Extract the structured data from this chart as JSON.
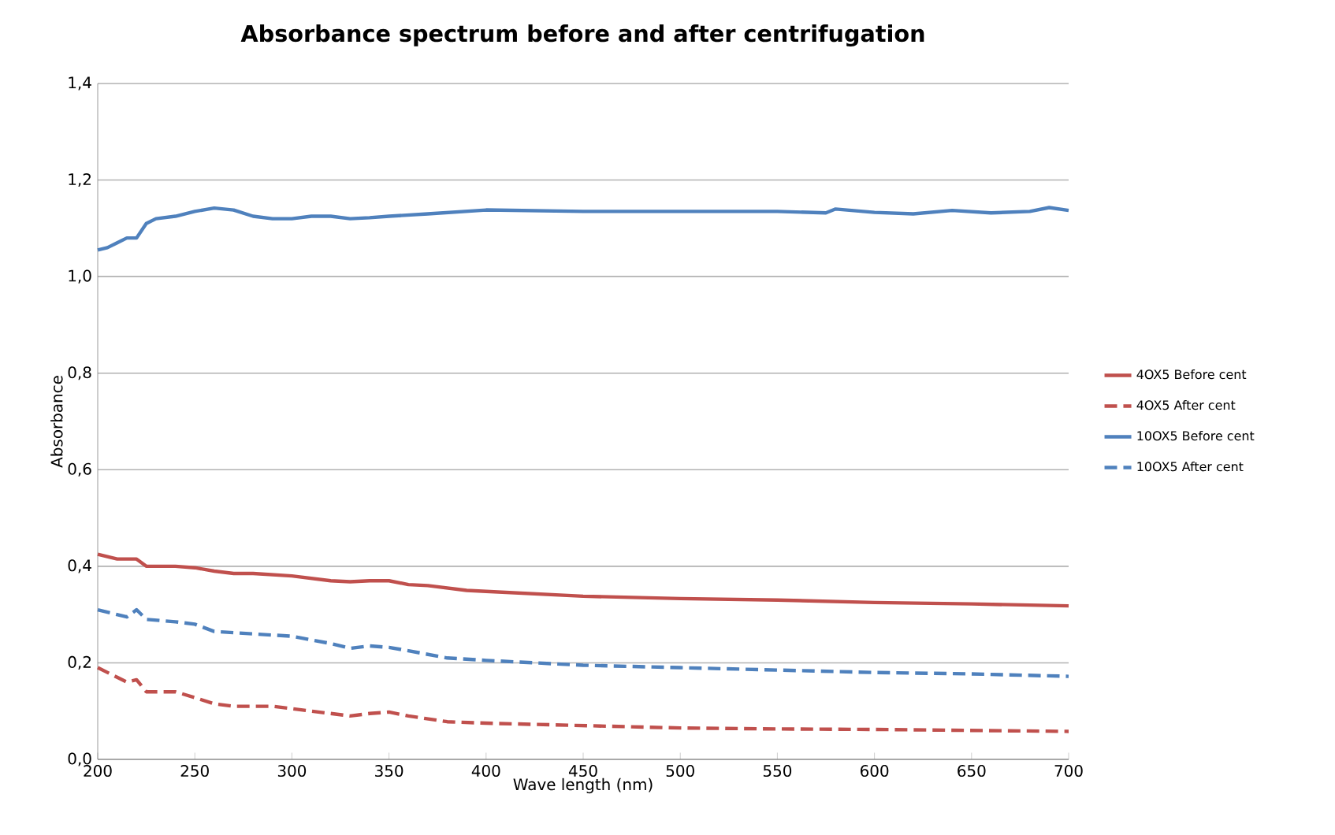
{
  "chart_data": {
    "type": "line",
    "title": "Absorbance spectrum before and after centrifugation",
    "xlabel": "Wave length (nm)",
    "ylabel": "Absorbance",
    "xlim": [
      200,
      700
    ],
    "xticks": [
      200,
      250,
      300,
      350,
      400,
      450,
      500,
      550,
      600,
      650,
      700
    ],
    "ylim": [
      0,
      1.4
    ],
    "yticks": [
      {
        "value": 0,
        "label": "0,0"
      },
      {
        "value": 0.2,
        "label": "0,2"
      },
      {
        "value": 0.4,
        "label": "0,4"
      },
      {
        "value": 0.6,
        "label": "0,6"
      },
      {
        "value": 0.8,
        "label": "0,8"
      },
      {
        "value": 1.0,
        "label": "1,0"
      },
      {
        "value": 1.2,
        "label": "1,2"
      },
      {
        "value": 1.4,
        "label": "1,4"
      }
    ],
    "grid": "y",
    "legend": "right",
    "marker": "none",
    "series": [
      {
        "name": "4OX5 Before cent",
        "color": "#c0504d",
        "line_style": "solid",
        "x": [
          200,
          210,
          220,
          225,
          240,
          250,
          260,
          270,
          280,
          300,
          320,
          330,
          340,
          350,
          360,
          370,
          390,
          400,
          450,
          500,
          550,
          600,
          650,
          700
        ],
        "values": [
          0.425,
          0.415,
          0.415,
          0.4,
          0.4,
          0.397,
          0.39,
          0.385,
          0.385,
          0.38,
          0.37,
          0.368,
          0.37,
          0.37,
          0.362,
          0.36,
          0.35,
          0.348,
          0.338,
          0.333,
          0.33,
          0.325,
          0.322,
          0.318
        ]
      },
      {
        "name": "4OX5 After cent",
        "color": "#c0504d",
        "line_style": "dashed",
        "x": [
          200,
          210,
          215,
          220,
          225,
          240,
          250,
          260,
          270,
          290,
          300,
          320,
          330,
          340,
          350,
          360,
          380,
          400,
          450,
          500,
          550,
          600,
          650,
          700
        ],
        "values": [
          0.19,
          0.17,
          0.16,
          0.165,
          0.14,
          0.14,
          0.128,
          0.115,
          0.11,
          0.11,
          0.105,
          0.095,
          0.09,
          0.095,
          0.098,
          0.09,
          0.078,
          0.075,
          0.07,
          0.065,
          0.063,
          0.062,
          0.06,
          0.058
        ]
      },
      {
        "name": "10OX5 Before cent",
        "color": "#4f81bd",
        "line_style": "solid",
        "x": [
          200,
          205,
          210,
          215,
          220,
          225,
          230,
          240,
          250,
          260,
          270,
          280,
          290,
          300,
          310,
          320,
          330,
          340,
          350,
          370,
          400,
          450,
          500,
          550,
          575,
          580,
          600,
          620,
          640,
          660,
          680,
          690,
          700
        ],
        "values": [
          1.055,
          1.06,
          1.07,
          1.08,
          1.08,
          1.11,
          1.12,
          1.125,
          1.135,
          1.142,
          1.138,
          1.125,
          1.12,
          1.12,
          1.125,
          1.125,
          1.12,
          1.122,
          1.125,
          1.13,
          1.138,
          1.135,
          1.135,
          1.135,
          1.132,
          1.14,
          1.133,
          1.13,
          1.137,
          1.132,
          1.135,
          1.143,
          1.137
        ]
      },
      {
        "name": "10OX5 After cent",
        "color": "#4f81bd",
        "line_style": "dashed",
        "x": [
          200,
          210,
          215,
          220,
          225,
          240,
          250,
          260,
          280,
          300,
          320,
          330,
          340,
          350,
          360,
          380,
          400,
          450,
          500,
          550,
          600,
          650,
          700
        ],
        "values": [
          0.31,
          0.3,
          0.295,
          0.31,
          0.29,
          0.285,
          0.28,
          0.265,
          0.26,
          0.255,
          0.24,
          0.23,
          0.235,
          0.232,
          0.225,
          0.21,
          0.205,
          0.195,
          0.19,
          0.185,
          0.18,
          0.177,
          0.172
        ]
      }
    ]
  }
}
